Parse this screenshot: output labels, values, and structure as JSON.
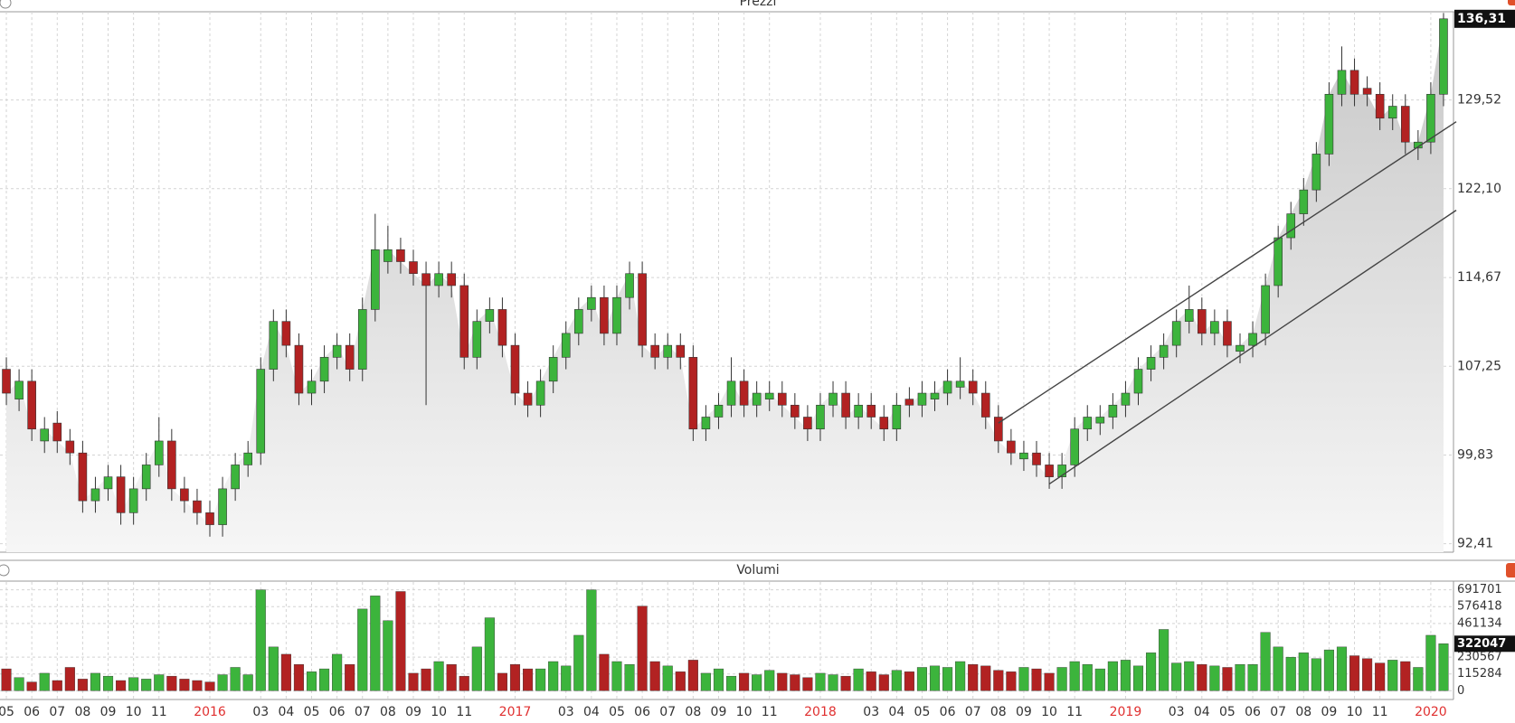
{
  "chart_data": [
    {
      "type": "candlestick",
      "title": "Prezzi",
      "open": [
        107,
        104.5,
        106,
        101,
        102.5,
        101,
        100,
        96,
        97,
        98,
        95,
        97,
        99,
        101,
        97,
        96,
        95,
        94,
        97,
        99,
        100,
        107,
        111,
        109,
        105,
        106,
        108,
        109,
        107,
        112,
        116,
        117,
        116,
        115,
        114,
        115,
        114,
        108,
        111,
        112,
        109,
        105,
        104,
        106,
        108,
        110,
        112,
        113,
        110,
        113,
        115,
        109,
        108,
        109,
        108,
        102,
        103,
        104,
        106,
        104,
        104.5,
        105,
        104,
        103,
        102,
        104,
        105,
        103,
        104,
        103,
        102,
        104.5,
        104,
        104.5,
        105,
        105.5,
        106,
        105,
        103,
        101,
        99.5,
        100,
        99,
        98,
        99,
        102,
        102.5,
        103,
        104,
        105,
        107,
        108,
        109,
        111,
        112,
        110,
        111,
        108.5,
        109,
        110,
        114,
        118,
        120,
        122,
        125,
        130,
        132,
        130.5,
        130,
        128,
        129,
        125.5,
        126,
        130
      ],
      "high": [
        108,
        107,
        107,
        103,
        103.5,
        102,
        101,
        98,
        99,
        99,
        98,
        100,
        103,
        102,
        98,
        97,
        96,
        98,
        100,
        101,
        108,
        112,
        112,
        110,
        107,
        109,
        110,
        110,
        113,
        120,
        119,
        118,
        117,
        116,
        116,
        116,
        115,
        112,
        113,
        113,
        110,
        106,
        107,
        109,
        111,
        113,
        114,
        114,
        114,
        116,
        116,
        110,
        110,
        110,
        109,
        104,
        105,
        108,
        107,
        106,
        106,
        106,
        105,
        104,
        105,
        106,
        106,
        105,
        105,
        104,
        105,
        105.5,
        106,
        106,
        107,
        108,
        107,
        106,
        104,
        102,
        101,
        101,
        100,
        100,
        103,
        104,
        104,
        105,
        106,
        108,
        109,
        110,
        112,
        114,
        113,
        112,
        112,
        110,
        111,
        115,
        119,
        121,
        123,
        126,
        131,
        134,
        133,
        131.5,
        131,
        130,
        130,
        127,
        131,
        136.8
      ],
      "low": [
        104,
        103.5,
        101,
        100,
        100,
        99,
        95,
        95,
        96,
        94,
        94,
        96,
        98,
        96,
        95,
        94,
        93,
        93,
        96,
        98,
        99,
        106,
        108,
        104,
        104,
        105,
        107,
        106,
        106,
        111,
        115,
        115,
        114,
        104,
        113,
        113,
        107,
        107,
        110,
        108,
        104,
        103,
        103,
        105,
        107,
        109,
        111,
        109,
        109,
        112,
        108,
        107,
        107,
        107,
        101,
        101,
        102,
        103,
        103,
        103,
        103.5,
        103,
        102,
        101,
        101,
        103,
        102,
        102,
        102,
        101,
        101,
        103,
        103,
        103.5,
        104,
        104.5,
        104,
        102,
        100,
        99,
        98.5,
        98,
        97,
        97,
        98,
        101,
        101.5,
        102,
        103,
        104,
        106,
        107,
        108,
        110,
        109,
        109,
        108,
        107.5,
        108,
        109,
        113,
        117,
        119,
        121,
        124,
        129,
        129,
        129,
        127,
        127,
        125,
        124.5,
        125,
        129
      ],
      "close": [
        105,
        106,
        102,
        102,
        101,
        100,
        96,
        97,
        98,
        95,
        97,
        99,
        101,
        97,
        96,
        95,
        94,
        97,
        99,
        100,
        107,
        111,
        109,
        105,
        106,
        108,
        109,
        107,
        112,
        117,
        117,
        116,
        115,
        114,
        115,
        114,
        108,
        111,
        112,
        109,
        105,
        104,
        106,
        108,
        110,
        112,
        113,
        110,
        113,
        115,
        109,
        108,
        109,
        108,
        102,
        103,
        104,
        106,
        104,
        105,
        105,
        104,
        103,
        102,
        104,
        105,
        103,
        104,
        103,
        102,
        104,
        104,
        105,
        105,
        106,
        106,
        105,
        103,
        101,
        100,
        100,
        99,
        98,
        99,
        102,
        103,
        103,
        104,
        105,
        107,
        108,
        109,
        111,
        112,
        110,
        111,
        109,
        109,
        110,
        114,
        118,
        120,
        122,
        125,
        130,
        132,
        130,
        130,
        128,
        129,
        126,
        126,
        130,
        136.31
      ],
      "up_color": "#3cb43c",
      "down_color": "#b22222",
      "ylim": [
        91.7,
        136.9
      ],
      "yticks": [
        {
          "value": 92.41,
          "label": "92,41"
        },
        {
          "value": 99.83,
          "label": "99,83"
        },
        {
          "value": 107.25,
          "label": "107,25"
        },
        {
          "value": 114.67,
          "label": "114,67"
        },
        {
          "value": 122.1,
          "label": "122,10"
        },
        {
          "value": 129.52,
          "label": "129,52"
        }
      ],
      "last_tick": {
        "value": 136.31,
        "label": "136,31"
      },
      "trendlines": [
        {
          "x": [
            78,
            114
          ],
          "y": [
            102.5,
            127.7
          ]
        },
        {
          "x": [
            82,
            114
          ],
          "y": [
            97.4,
            120.3
          ]
        }
      ],
      "grid": true
    },
    {
      "type": "bar",
      "title": "Volumi",
      "categories": [
        "05",
        null,
        "06",
        null,
        "07",
        null,
        "08",
        null,
        "09",
        null,
        "10",
        null,
        "11",
        null,
        null,
        null,
        "2016",
        null,
        null,
        null,
        "03",
        null,
        "04",
        null,
        "05",
        null,
        "06",
        null,
        "07",
        null,
        "08",
        null,
        "09",
        null,
        "10",
        null,
        "11",
        null,
        null,
        null,
        "2017",
        null,
        null,
        null,
        "03",
        null,
        "04",
        null,
        "05",
        null,
        "06",
        null,
        "07",
        null,
        "08",
        null,
        "09",
        null,
        "10",
        null,
        "11",
        null,
        null,
        null,
        "2018",
        null,
        null,
        null,
        "03",
        null,
        "04",
        null,
        "05",
        null,
        "06",
        null,
        "07",
        null,
        "08",
        null,
        "09",
        null,
        "10",
        null,
        "11",
        null,
        null,
        null,
        "2019",
        null,
        null,
        null,
        "03",
        null,
        "04",
        null,
        "05",
        null,
        "06",
        null,
        "07",
        null,
        "08",
        null,
        "09",
        null,
        "10",
        null,
        "11",
        null,
        null,
        null,
        "2020",
        null
      ],
      "values": [
        150000,
        90000,
        60000,
        120000,
        70000,
        160000,
        80000,
        120000,
        100000,
        70000,
        90000,
        80000,
        110000,
        100000,
        80000,
        70000,
        60000,
        110000,
        160000,
        110000,
        691701,
        300000,
        250000,
        180000,
        130000,
        150000,
        250000,
        180000,
        560000,
        650000,
        480000,
        680000,
        120000,
        150000,
        200000,
        180000,
        100000,
        300000,
        500000,
        120000,
        180000,
        150000,
        150000,
        200000,
        170000,
        380000,
        691701,
        250000,
        200000,
        180000,
        580000,
        200000,
        170000,
        130000,
        210000,
        120000,
        150000,
        100000,
        120000,
        110000,
        140000,
        120000,
        110000,
        90000,
        120000,
        110000,
        100000,
        150000,
        130000,
        110000,
        140000,
        130000,
        160000,
        170000,
        160000,
        200000,
        180000,
        170000,
        140000,
        130000,
        160000,
        150000,
        120000,
        160000,
        200000,
        180000,
        150000,
        200000,
        210000,
        170000,
        260000,
        420000,
        190000,
        200000,
        180000,
        170000,
        160000,
        180000,
        180000,
        400000,
        300000,
        230000,
        260000,
        220000,
        280000,
        300000,
        240000,
        220000,
        190000,
        210000,
        200000,
        160000,
        380000,
        322047
      ],
      "ylim": [
        -60000,
        745000
      ],
      "yticks": [
        0,
        115284,
        230567,
        461134,
        576418,
        691701
      ],
      "last_tick": 322047,
      "year_color": "#e03030",
      "grid": true
    }
  ]
}
